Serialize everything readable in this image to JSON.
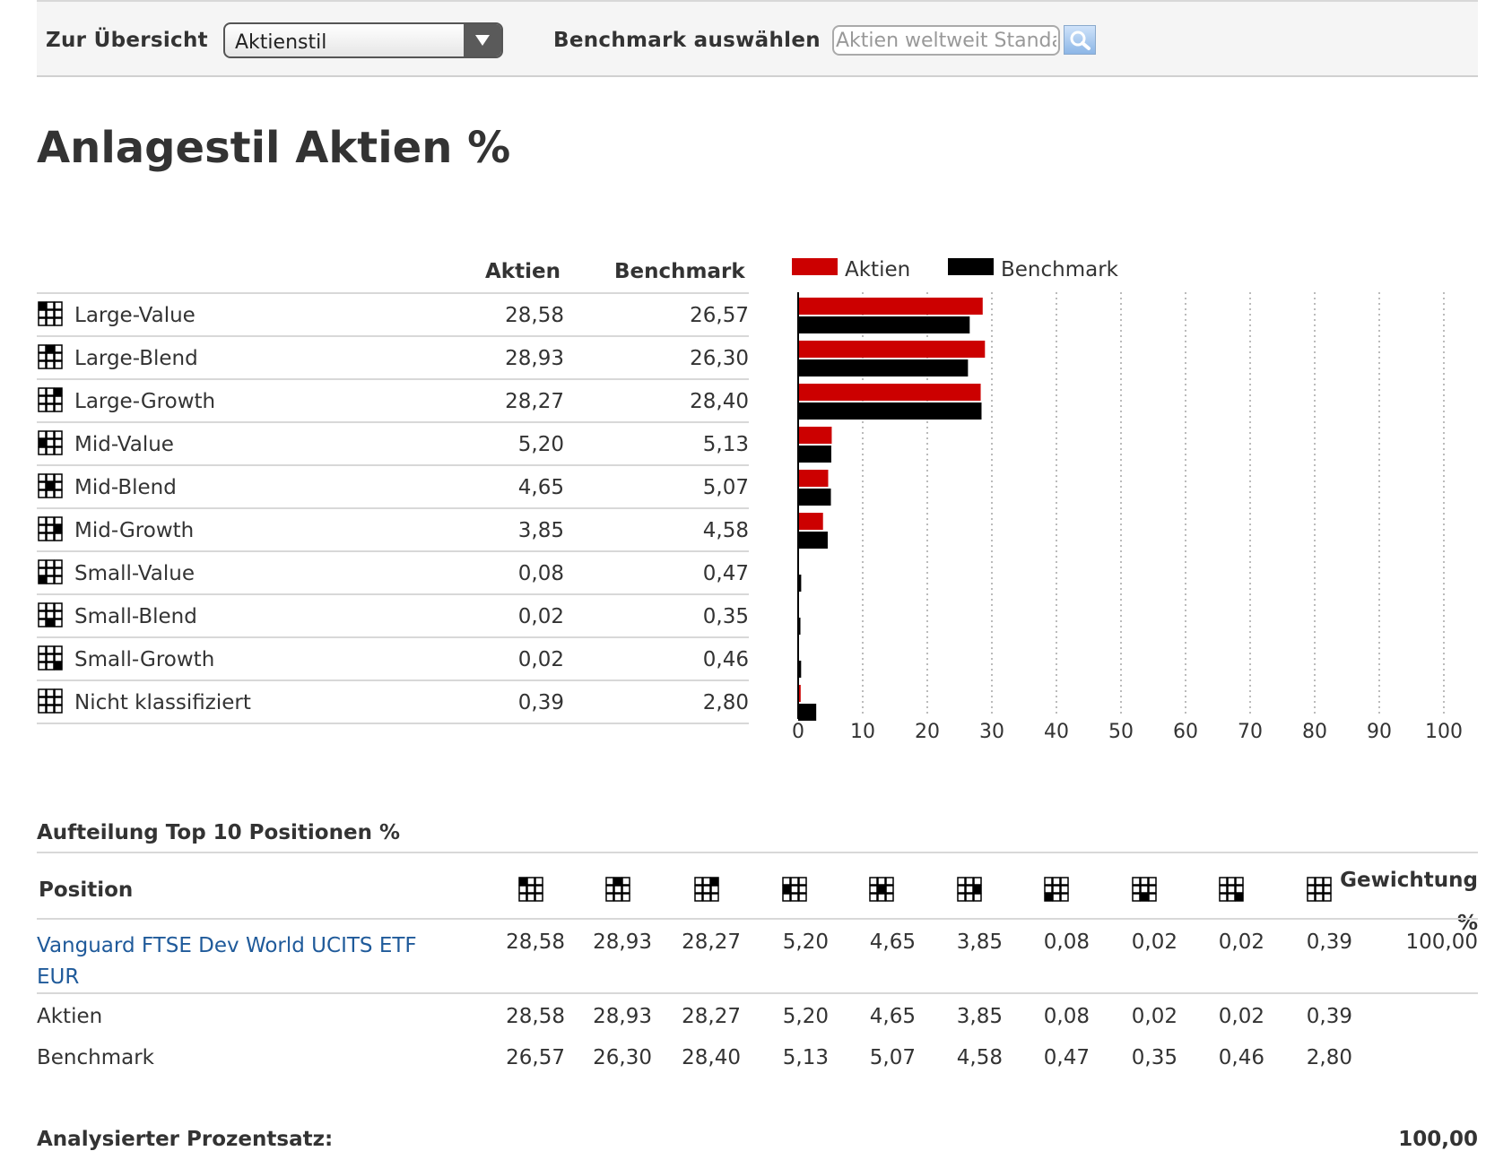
{
  "toolbar": {
    "overview_label": "Zur Übersicht",
    "select_value": "Aktienstil",
    "benchmark_label": "Benchmark auswählen",
    "benchmark_input_value": "Aktien weltweit Standard",
    "search_icon": "search-icon"
  },
  "page": {
    "title": "Anlagestil Aktien %"
  },
  "style_table": {
    "headers": [
      "Aktien",
      "Benchmark"
    ],
    "rows": [
      {
        "name": "Large-Value",
        "aktien": "28,58",
        "benchmark": "26,57",
        "icon": "style-box-icon"
      },
      {
        "name": "Large-Blend",
        "aktien": "28,93",
        "benchmark": "26,30",
        "icon": "style-box-icon"
      },
      {
        "name": "Large-Growth",
        "aktien": "28,27",
        "benchmark": "28,40",
        "icon": "style-box-icon"
      },
      {
        "name": "Mid-Value",
        "aktien": "5,20",
        "benchmark": "5,13",
        "icon": "style-box-icon"
      },
      {
        "name": "Mid-Blend",
        "aktien": "4,65",
        "benchmark": "5,07",
        "icon": "style-box-icon"
      },
      {
        "name": "Mid-Growth",
        "aktien": "3,85",
        "benchmark": "4,58",
        "icon": "style-box-icon"
      },
      {
        "name": "Small-Value",
        "aktien": "0,08",
        "benchmark": "0,47",
        "icon": "style-box-icon"
      },
      {
        "name": "Small-Blend",
        "aktien": "0,02",
        "benchmark": "0,35",
        "icon": "style-box-icon"
      },
      {
        "name": "Small-Growth",
        "aktien": "0,02",
        "benchmark": "0,46",
        "icon": "style-box-icon"
      },
      {
        "name": "Nicht klassifiziert",
        "aktien": "0,39",
        "benchmark": "2,80",
        "icon": "style-box-icon"
      }
    ]
  },
  "chart_data": {
    "type": "bar",
    "orientation": "horizontal",
    "categories": [
      "Large-Value",
      "Large-Blend",
      "Large-Growth",
      "Mid-Value",
      "Mid-Blend",
      "Mid-Growth",
      "Small-Value",
      "Small-Blend",
      "Small-Growth",
      "Nicht klassifiziert"
    ],
    "series": [
      {
        "name": "Aktien",
        "color": "#cc0000",
        "values": [
          28.58,
          28.93,
          28.27,
          5.2,
          4.65,
          3.85,
          0.08,
          0.02,
          0.02,
          0.39
        ]
      },
      {
        "name": "Benchmark",
        "color": "#000000",
        "values": [
          26.57,
          26.3,
          28.4,
          5.13,
          5.07,
          4.58,
          0.47,
          0.35,
          0.46,
          2.8
        ]
      }
    ],
    "xlim": [
      0,
      100
    ],
    "xticks": [
      0,
      10,
      20,
      30,
      40,
      50,
      60,
      70,
      80,
      90,
      100
    ],
    "grid": "vertical dotted",
    "legend_position": "top-left"
  },
  "top10": {
    "title": "Aufteilung Top 10 Positionen %",
    "position_header": "Position",
    "weight_header_line1": "Gewichtung",
    "weight_header_line2": "%",
    "column_icons": [
      "style-box-icon",
      "style-box-icon",
      "style-box-icon",
      "style-box-icon",
      "style-box-icon",
      "style-box-icon",
      "style-box-icon",
      "style-box-icon",
      "style-box-icon",
      "style-box-icon"
    ],
    "fund": {
      "name": "Vanguard FTSE Dev World UCITS ETF EUR",
      "values": [
        "28,58",
        "28,93",
        "28,27",
        "5,20",
        "4,65",
        "3,85",
        "0,08",
        "0,02",
        "0,02",
        "0,39"
      ],
      "weight": "100,00"
    },
    "aktien_row": {
      "label": "Aktien",
      "values": [
        "28,58",
        "28,93",
        "28,27",
        "5,20",
        "4,65",
        "3,85",
        "0,08",
        "0,02",
        "0,02",
        "0,39"
      ]
    },
    "benchmark_row": {
      "label": "Benchmark",
      "values": [
        "26,57",
        "26,30",
        "28,40",
        "5,13",
        "5,07",
        "4,58",
        "0,47",
        "0,35",
        "0,46",
        "2,80"
      ]
    }
  },
  "analysed": {
    "label": "Analysierter Prozentsatz:",
    "value": "100,00"
  },
  "colors": {
    "aktien": "#cc0000",
    "benchmark": "#000000",
    "link": "#1f5a9a"
  }
}
